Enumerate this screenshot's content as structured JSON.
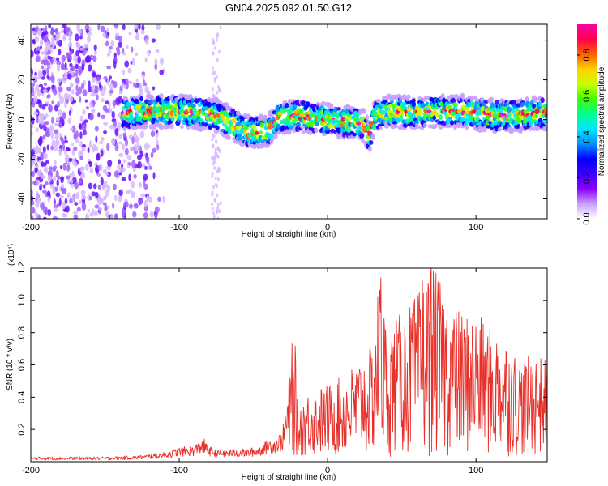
{
  "title": "GN04.2025.092.01.50.G12",
  "chart_data": [
    {
      "type": "heatmap",
      "name": "spectrogram",
      "xlabel": "Height of straight line (km)",
      "ylabel": "Frequency (Hz)",
      "xlim": [
        -200,
        148
      ],
      "ylim": [
        -50,
        48
      ],
      "xticks": [
        -200,
        -100,
        0,
        100
      ],
      "yticks": [
        -40,
        -20,
        0,
        20,
        40
      ],
      "colorbar": {
        "label": "Normalized spectral amplitude",
        "range": [
          0,
          0.95
        ],
        "ticks": [
          0.0,
          0.2,
          0.4,
          0.6,
          0.8
        ],
        "tick_labels": [
          "0.0",
          "0.2",
          "0.4",
          "0.6",
          "0.8"
        ],
        "colors": [
          "#ffffff",
          "#c8a0ff",
          "#8a00ff",
          "#3c00ff",
          "#0000ff",
          "#0090ff",
          "#00e6ff",
          "#00ff90",
          "#40ff00",
          "#c8ff00",
          "#ffd000",
          "#ff6000",
          "#ff0050",
          "#ff00a0"
        ]
      },
      "ridge_frequency": {
        "x": [
          -138,
          -125,
          -110,
          -95,
          -85,
          -75,
          -65,
          -55,
          -48,
          -42,
          -38,
          -33,
          -28,
          -20,
          -10,
          0,
          10,
          20,
          25,
          28,
          32,
          40,
          50,
          60,
          70,
          80,
          90,
          100,
          110,
          120,
          130,
          140,
          148
        ],
        "y": [
          3,
          4,
          4,
          4,
          3,
          2,
          -2,
          -6,
          -6,
          -6,
          -4,
          1,
          1,
          2,
          1,
          0,
          -1,
          -2,
          -3,
          -9,
          2,
          4,
          4,
          3,
          4,
          4,
          4,
          3,
          2,
          2,
          2,
          3,
          3
        ]
      },
      "noise_region_x": [
        -200,
        -110
      ]
    },
    {
      "type": "line",
      "name": "snr",
      "xlabel": "Height of straight line (km)",
      "ylabel": "SNR (10 * v/v)",
      "multiplier_label": "(x10⁴)",
      "xlim": [
        -200,
        148
      ],
      "ylim": [
        0,
        1.2
      ],
      "xticks": [
        -200,
        -100,
        0,
        100
      ],
      "yticks": [
        0.2,
        0.4,
        0.6,
        0.8,
        1.0,
        1.2
      ],
      "ytick_labels": [
        "0.2",
        "0.4",
        "0.6",
        "0.8",
        "1.0",
        "1.2"
      ],
      "color": "#e8302a",
      "envelope": {
        "x": [
          -200,
          -150,
          -125,
          -110,
          -100,
          -90,
          -85,
          -80,
          -75,
          -65,
          -55,
          -45,
          -40,
          -35,
          -30,
          -25,
          -22,
          -20,
          -15,
          -10,
          0,
          10,
          20,
          30,
          35,
          40,
          50,
          60,
          70,
          80,
          90,
          100,
          110,
          120,
          130,
          140,
          148
        ],
        "y": [
          0.03,
          0.03,
          0.04,
          0.06,
          0.09,
          0.1,
          0.14,
          0.1,
          0.07,
          0.08,
          0.08,
          0.1,
          0.14,
          0.15,
          0.2,
          0.55,
          0.72,
          0.3,
          0.4,
          0.42,
          0.45,
          0.5,
          0.6,
          0.7,
          1.15,
          0.8,
          0.9,
          1.0,
          1.2,
          1.0,
          0.9,
          0.9,
          0.8,
          0.75,
          0.6,
          0.65,
          0.6
        ]
      },
      "peaks": [
        {
          "x": -83,
          "y": 0.14
        },
        {
          "x": -24,
          "y": 0.73
        },
        {
          "x": 36,
          "y": 1.14
        },
        {
          "x": 64,
          "y": 1.12
        },
        {
          "x": 70,
          "y": 1.2
        }
      ]
    }
  ]
}
